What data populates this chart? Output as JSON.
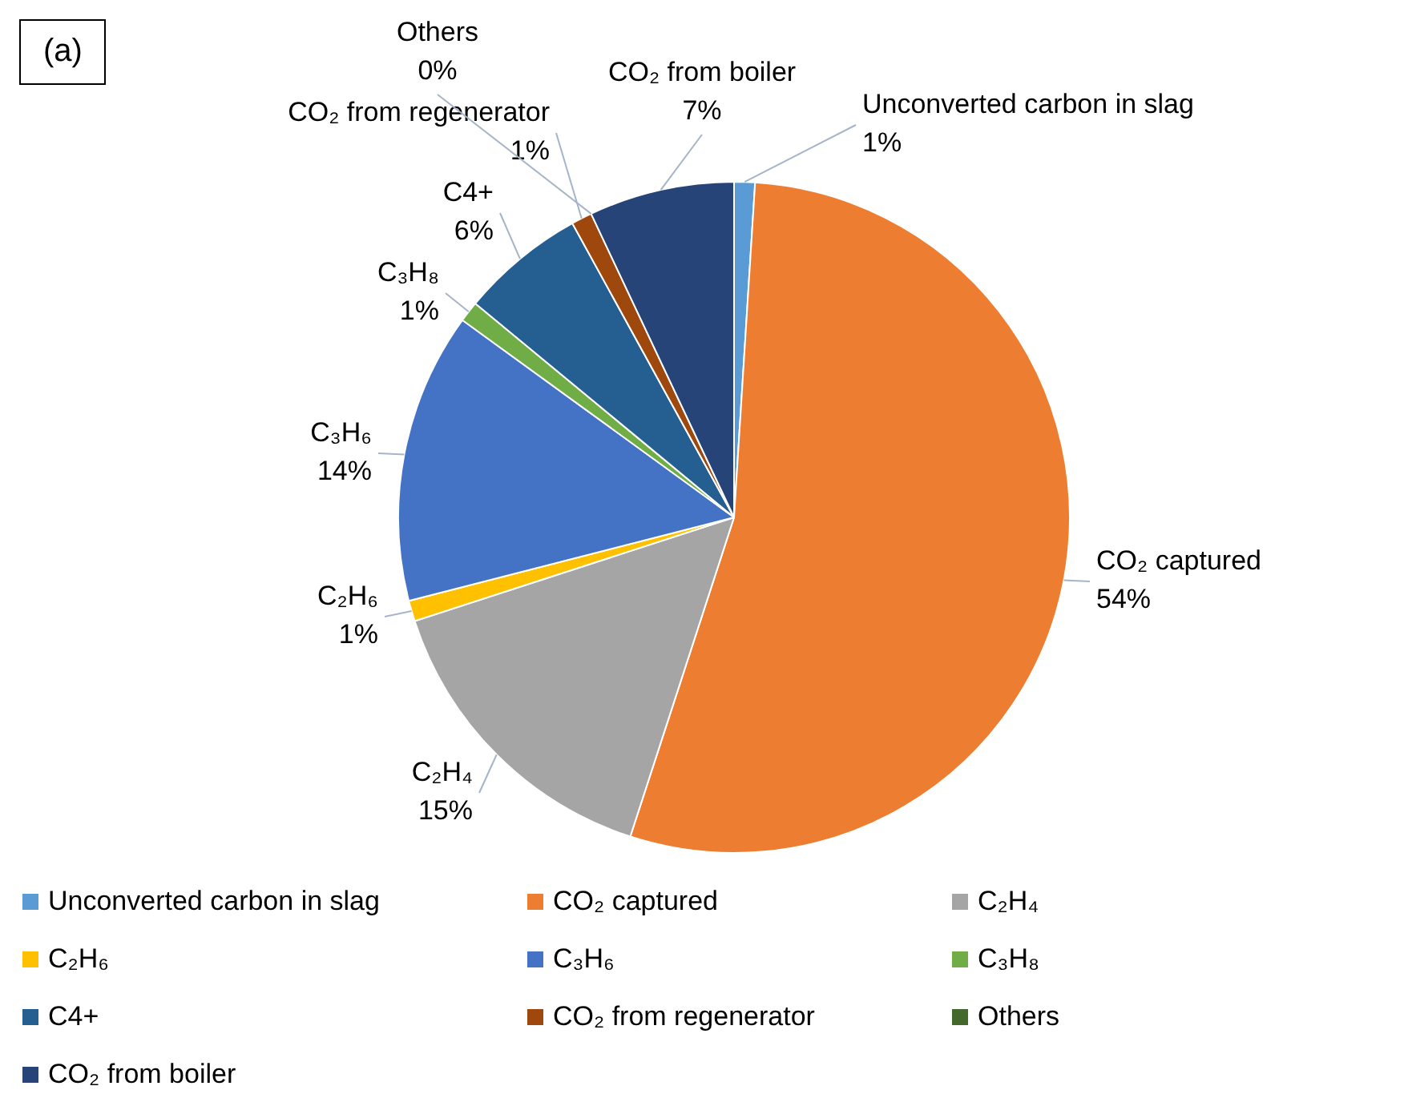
{
  "chart_data": {
    "type": "pie",
    "title": "(a)",
    "categories": [
      "Unconverted carbon in slag",
      "CO₂ captured",
      "C₂H₄",
      "C₂H₆",
      "C₃H₆",
      "C₃H₈",
      "C4+",
      "CO₂ from regenerator",
      "Others",
      "CO₂ from boiler"
    ],
    "values": [
      1,
      54,
      15,
      1,
      14,
      1,
      6,
      1,
      0,
      7
    ],
    "value_labels": [
      "1%",
      "54%",
      "15%",
      "1%",
      "14%",
      "1%",
      "6%",
      "1%",
      "0%",
      "7%"
    ],
    "colors": [
      "#5b9bd5",
      "#ed7d31",
      "#a5a5a5",
      "#ffc000",
      "#4472c4",
      "#70ad47",
      "#255e91",
      "#9e480e",
      "#43682b",
      "#264478"
    ],
    "legend": "bottom"
  }
}
